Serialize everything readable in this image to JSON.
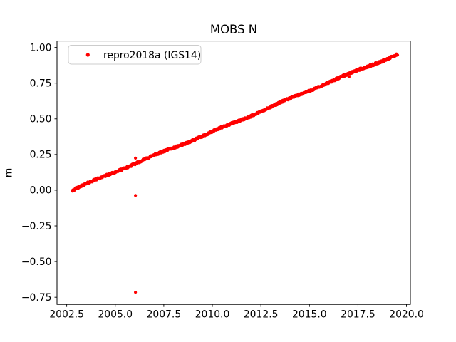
{
  "figure": {
    "background": "#ffffff"
  },
  "chart_data": {
    "type": "scatter",
    "title": "MOBS N",
    "xlabel": "",
    "ylabel": "m",
    "grid": false,
    "xlim": [
      2002.0,
      2020.2
    ],
    "ylim": [
      -0.8,
      1.045
    ],
    "xticks": [
      2002.5,
      2005.0,
      2007.5,
      2010.0,
      2012.5,
      2015.0,
      2017.5,
      2020.0
    ],
    "xtick_labels": [
      "2002.5",
      "2005.0",
      "2007.5",
      "2010.0",
      "2012.5",
      "2015.0",
      "2017.5",
      "2020.0"
    ],
    "yticks": [
      1.0,
      0.75,
      0.5,
      0.25,
      0.0,
      -0.25,
      -0.5,
      -0.75
    ],
    "ytick_labels": [
      "1.00",
      "0.75",
      "0.50",
      "0.25",
      "0.00",
      "−0.25",
      "−0.50",
      "−0.75"
    ],
    "legend": {
      "position": "upper left",
      "border_color": "#cccccc",
      "background": "#ffffff"
    },
    "series": [
      {
        "name": "repro2018a (IGS14)",
        "color": "#ff0000",
        "marker": "point",
        "marker_radius_px": 2.1,
        "trend": {
          "x_start": 2002.78,
          "x_end": 2019.55,
          "y_start": 0.0,
          "y_end": 0.955,
          "slope_m_per_yr": 0.057,
          "scatter_band_m": 0.016,
          "sample_step_years": 0.02
        },
        "outliers": [
          {
            "x": 2006.04,
            "y": 0.225
          },
          {
            "x": 2006.04,
            "y": -0.037
          },
          {
            "x": 2006.04,
            "y": -0.715
          },
          {
            "x": 2017.04,
            "y": 0.794
          }
        ]
      }
    ],
    "colors": {
      "spine": "#000000",
      "tick": "#000000",
      "text": "#000000"
    }
  }
}
